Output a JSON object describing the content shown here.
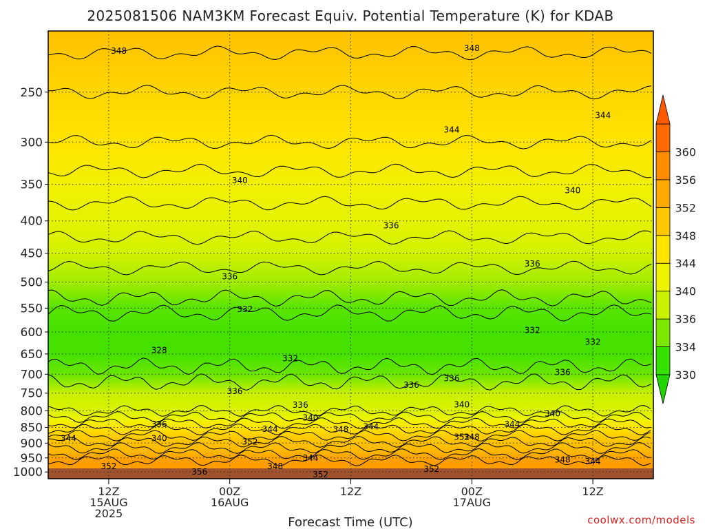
{
  "chart_data": {
    "type": "heatmap",
    "title": "2025081506 NAM3KM Forecast Equiv. Potential Temperature (K) for KDAB",
    "xlabel": "Forecast Time (UTC)",
    "ylabel": "",
    "credit": "coolwx.com/models",
    "time_range_hours": [
      -6,
      54
    ],
    "x_ticks": [
      {
        "hour": 0,
        "lines": [
          "12Z",
          "15AUG",
          "2025"
        ]
      },
      {
        "hour": 12,
        "lines": [
          "00Z",
          "16AUG"
        ]
      },
      {
        "hour": 24,
        "lines": [
          "12Z"
        ]
      },
      {
        "hour": 36,
        "lines": [
          "00Z",
          "17AUG"
        ]
      },
      {
        "hour": 48,
        "lines": [
          "12Z"
        ]
      }
    ],
    "pressure_range_hpa": [
      1025,
      200
    ],
    "y_scale": "log-pressure",
    "y_ticks": [
      1000,
      950,
      900,
      850,
      800,
      750,
      700,
      650,
      600,
      550,
      500,
      450,
      400,
      350,
      300,
      250
    ],
    "grid": true,
    "colorbar": {
      "levels": [
        330,
        334,
        336,
        340,
        344,
        348,
        352,
        356,
        360
      ],
      "tick_labels": [
        "330",
        "334",
        "336",
        "340",
        "344",
        "348",
        "352",
        "356",
        "360"
      ],
      "colors": [
        "#33e000",
        "#7ce800",
        "#c8f000",
        "#eef400",
        "#ffe400",
        "#ffc800",
        "#ffaa00",
        "#ff8c00",
        "#ff6a00"
      ]
    },
    "surface_color": "#a0522d",
    "profile_by_pressure": [
      {
        "p": 1000,
        "theta_e": 352
      },
      {
        "p": 975,
        "theta_e": 354
      },
      {
        "p": 950,
        "theta_e": 353
      },
      {
        "p": 925,
        "theta_e": 350
      },
      {
        "p": 900,
        "theta_e": 349
      },
      {
        "p": 875,
        "theta_e": 347
      },
      {
        "p": 850,
        "theta_e": 344
      },
      {
        "p": 825,
        "theta_e": 340
      },
      {
        "p": 800,
        "theta_e": 338
      },
      {
        "p": 750,
        "theta_e": 336
      },
      {
        "p": 700,
        "theta_e": 333
      },
      {
        "p": 650,
        "theta_e": 331
      },
      {
        "p": 600,
        "theta_e": 331
      },
      {
        "p": 550,
        "theta_e": 332
      },
      {
        "p": 500,
        "theta_e": 335
      },
      {
        "p": 450,
        "theta_e": 337
      },
      {
        "p": 400,
        "theta_e": 339
      },
      {
        "p": 350,
        "theta_e": 341
      },
      {
        "p": 300,
        "theta_e": 344
      },
      {
        "p": 250,
        "theta_e": 346
      },
      {
        "p": 200,
        "theta_e": 349
      }
    ],
    "contour_labels": [
      {
        "text": "348",
        "hour": 1,
        "p": 215
      },
      {
        "text": "348",
        "hour": 36,
        "p": 213
      },
      {
        "text": "344",
        "hour": 34,
        "p": 287
      },
      {
        "text": "344",
        "hour": 49,
        "p": 272
      },
      {
        "text": "340",
        "hour": 13,
        "p": 345
      },
      {
        "text": "340",
        "hour": 46,
        "p": 358
      },
      {
        "text": "336",
        "hour": 28,
        "p": 407
      },
      {
        "text": "336",
        "hour": 42,
        "p": 468
      },
      {
        "text": "336",
        "hour": 12,
        "p": 490
      },
      {
        "text": "332",
        "hour": 13.5,
        "p": 552
      },
      {
        "text": "332",
        "hour": 42,
        "p": 596
      },
      {
        "text": "332",
        "hour": 48,
        "p": 622
      },
      {
        "text": "332",
        "hour": 18,
        "p": 661
      },
      {
        "text": "328",
        "hour": 5,
        "p": 641
      },
      {
        "text": "336",
        "hour": 12.5,
        "p": 745
      },
      {
        "text": "336",
        "hour": 30,
        "p": 728
      },
      {
        "text": "336",
        "hour": 34,
        "p": 711
      },
      {
        "text": "336",
        "hour": 45,
        "p": 695
      },
      {
        "text": "336",
        "hour": 19,
        "p": 783
      },
      {
        "text": "340",
        "hour": 35,
        "p": 782
      },
      {
        "text": "340",
        "hour": 44,
        "p": 808
      },
      {
        "text": "340",
        "hour": 20,
        "p": 821
      },
      {
        "text": "336",
        "hour": 5,
        "p": 840
      },
      {
        "text": "344",
        "hour": 16,
        "p": 855
      },
      {
        "text": "344",
        "hour": 26,
        "p": 848
      },
      {
        "text": "344",
        "hour": 40,
        "p": 840
      },
      {
        "text": "348",
        "hour": 23,
        "p": 856
      },
      {
        "text": "340",
        "hour": 5,
        "p": 885
      },
      {
        "text": "344",
        "hour": -4,
        "p": 885
      },
      {
        "text": "352",
        "hour": 14,
        "p": 896
      },
      {
        "text": "352",
        "hour": 35,
        "p": 880
      },
      {
        "text": "348",
        "hour": 36,
        "p": 880
      },
      {
        "text": "344",
        "hour": 20,
        "p": 950
      },
      {
        "text": "348",
        "hour": 16.5,
        "p": 980
      },
      {
        "text": "348",
        "hour": 45,
        "p": 957
      },
      {
        "text": "344",
        "hour": 48,
        "p": 963
      },
      {
        "text": "352",
        "hour": 0,
        "p": 980
      },
      {
        "text": "356",
        "hour": 9,
        "p": 1000
      },
      {
        "text": "352",
        "hour": 21,
        "p": 1010
      },
      {
        "text": "352",
        "hour": 32,
        "p": 990
      }
    ]
  }
}
